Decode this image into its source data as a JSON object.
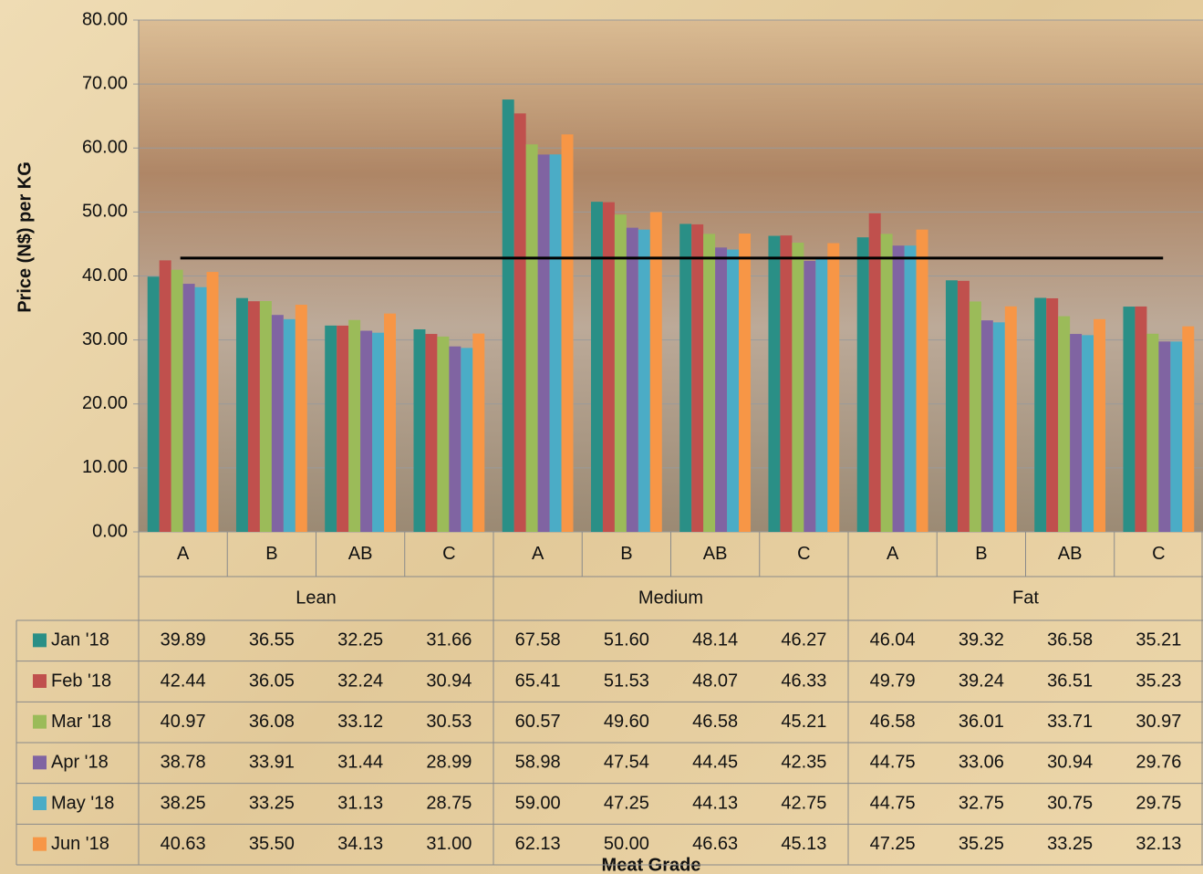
{
  "chart_data": {
    "type": "bar",
    "y_label": "Price (N$) per KG",
    "x_label": "Meat Grade",
    "categories": [
      "A",
      "B",
      "AB",
      "C",
      "A",
      "B",
      "AB",
      "C",
      "A",
      "B",
      "AB",
      "C"
    ],
    "category_groups": [
      "Lean",
      "Medium",
      "Fat"
    ],
    "ylim": [
      0,
      80
    ],
    "yticks": [
      {
        "value": 0,
        "label": "0.00"
      },
      {
        "value": 10,
        "label": "10.00"
      },
      {
        "value": 20,
        "label": "20.00"
      },
      {
        "value": 30,
        "label": "30.00"
      },
      {
        "value": 40,
        "label": "40.00"
      },
      {
        "value": 50,
        "label": "50.00"
      },
      {
        "value": 60,
        "label": "60.00"
      },
      {
        "value": 70,
        "label": "70.00"
      },
      {
        "value": 80,
        "label": "80.00"
      }
    ],
    "grid": true,
    "reference_line": 42.8,
    "series": [
      {
        "name": "Jan '18",
        "color": "#2a8f86",
        "values": [
          39.89,
          36.55,
          32.25,
          31.66,
          67.58,
          51.6,
          48.14,
          46.27,
          46.04,
          39.32,
          36.58,
          35.21
        ],
        "value_labels": [
          "39.89",
          "36.55",
          "32.25",
          "31.66",
          "67.58",
          "51.60",
          "48.14",
          "46.27",
          "46.04",
          "39.32",
          "36.58",
          "35.21"
        ]
      },
      {
        "name": "Feb '18",
        "color": "#c0504d",
        "values": [
          42.44,
          36.05,
          32.24,
          30.94,
          65.41,
          51.53,
          48.07,
          46.33,
          49.79,
          39.24,
          36.51,
          35.23
        ],
        "value_labels": [
          "42.44",
          "36.05",
          "32.24",
          "30.94",
          "65.41",
          "51.53",
          "48.07",
          "46.33",
          "49.79",
          "39.24",
          "36.51",
          "35.23"
        ]
      },
      {
        "name": "Mar '18",
        "color": "#9bbb59",
        "values": [
          40.97,
          36.08,
          33.12,
          30.53,
          60.57,
          49.6,
          46.58,
          45.21,
          46.58,
          36.01,
          33.71,
          30.97
        ],
        "value_labels": [
          "40.97",
          "36.08",
          "33.12",
          "30.53",
          "60.57",
          "49.60",
          "46.58",
          "45.21",
          "46.58",
          "36.01",
          "33.71",
          "30.97"
        ]
      },
      {
        "name": "Apr '18",
        "color": "#8064a2",
        "values": [
          38.78,
          33.91,
          31.44,
          28.99,
          58.98,
          47.54,
          44.45,
          42.35,
          44.75,
          33.06,
          30.94,
          29.76
        ],
        "value_labels": [
          "38.78",
          "33.91",
          "31.44",
          "28.99",
          "58.98",
          "47.54",
          "44.45",
          "42.35",
          "44.75",
          "33.06",
          "30.94",
          "29.76"
        ]
      },
      {
        "name": "May '18",
        "color": "#4bacc6",
        "values": [
          38.25,
          33.25,
          31.13,
          28.75,
          59.0,
          47.25,
          44.13,
          42.75,
          44.75,
          32.75,
          30.75,
          29.75
        ],
        "value_labels": [
          "38.25",
          "33.25",
          "31.13",
          "28.75",
          "59.00",
          "47.25",
          "44.13",
          "42.75",
          "44.75",
          "32.75",
          "30.75",
          "29.75"
        ]
      },
      {
        "name": "Jun '18",
        "color": "#f79646",
        "values": [
          40.63,
          35.5,
          34.13,
          31.0,
          62.13,
          50.0,
          46.63,
          45.13,
          47.25,
          35.25,
          33.25,
          32.13
        ],
        "value_labels": [
          "40.63",
          "35.50",
          "34.13",
          "31.00",
          "62.13",
          "50.00",
          "46.63",
          "45.13",
          "47.25",
          "35.25",
          "33.25",
          "32.13"
        ]
      }
    ]
  }
}
